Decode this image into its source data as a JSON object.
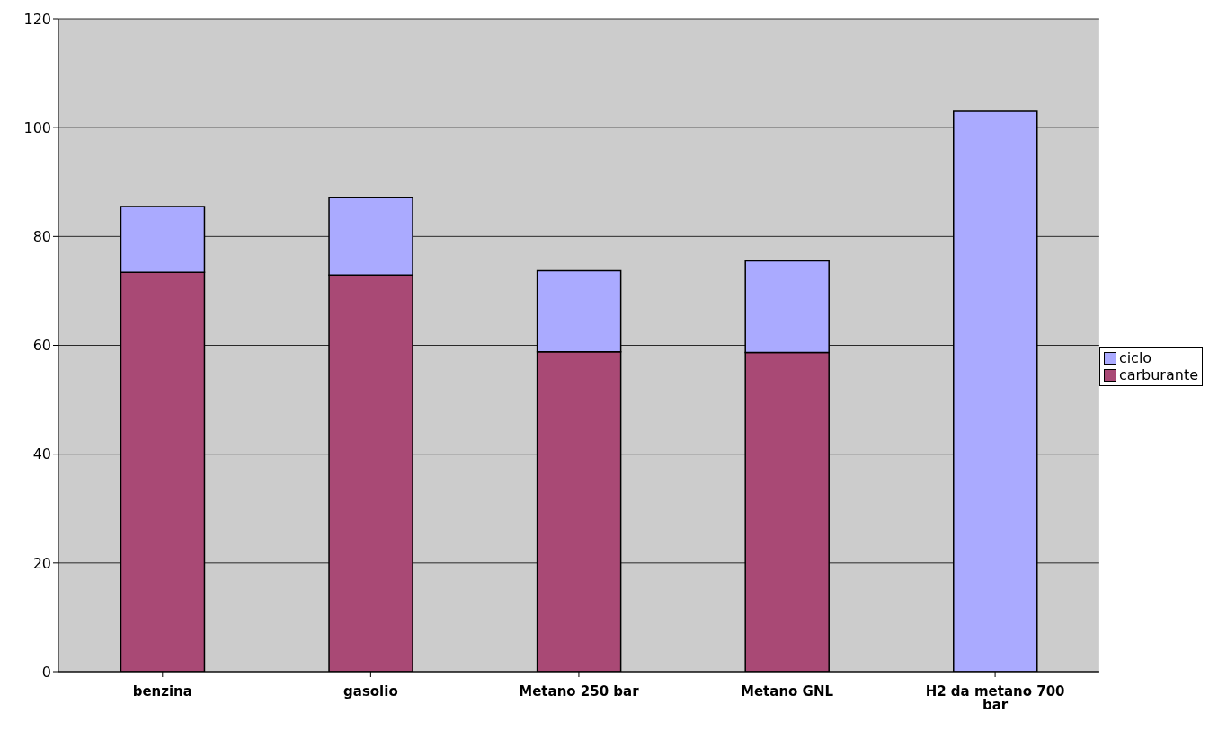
{
  "chart_data": {
    "type": "bar",
    "stacked": true,
    "categories": [
      "benzina",
      "gasolio",
      "Metano 250 bar",
      "Metano GNL",
      "H2 da metano 700 bar"
    ],
    "series": [
      {
        "name": "carburante",
        "color": "#a94975",
        "values": [
          73.4,
          72.9,
          58.8,
          58.7,
          null
        ]
      },
      {
        "name": "ciclo",
        "color": "#aaaaff",
        "values": [
          12.1,
          14.3,
          14.9,
          16.8,
          103.0
        ]
      }
    ],
    "ylim": [
      0,
      120
    ],
    "yticks": [
      0,
      20,
      40,
      60,
      80,
      100,
      120
    ],
    "grid": "y",
    "legend": "right"
  }
}
